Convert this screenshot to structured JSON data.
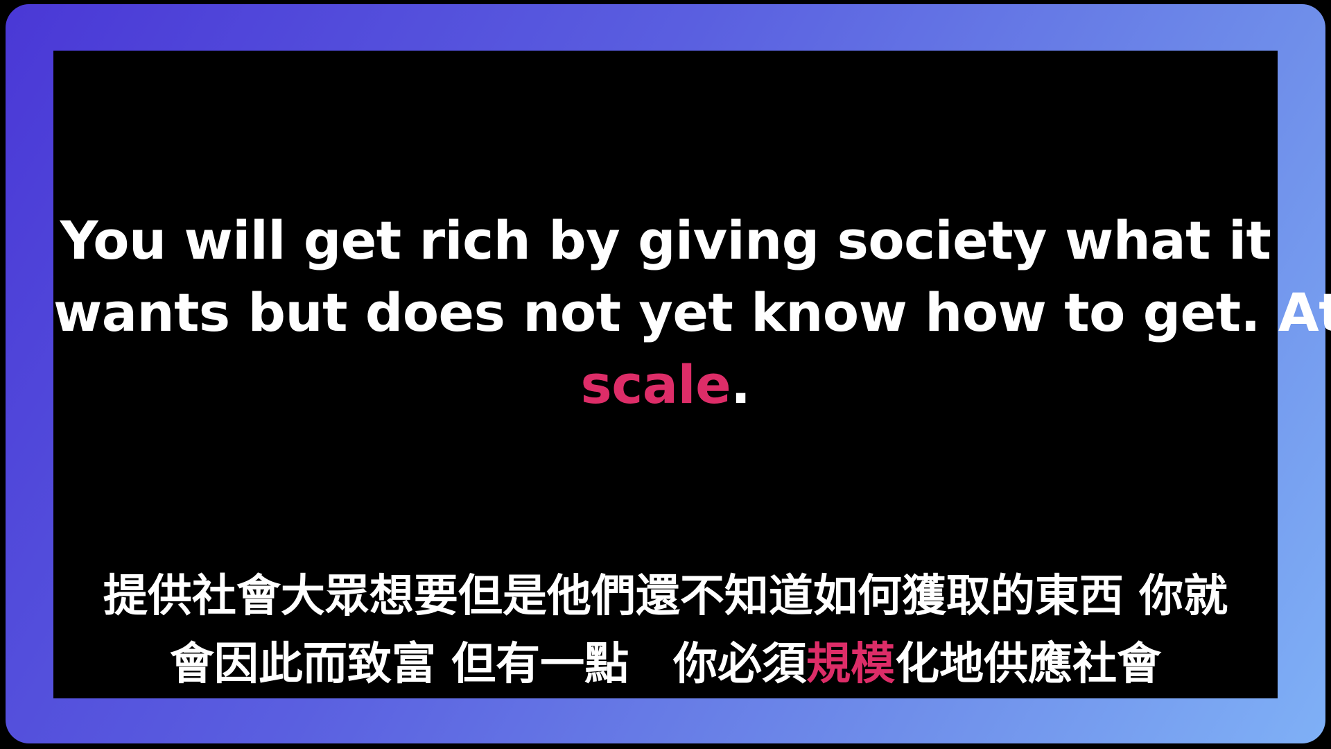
{
  "quote_en": {
    "line1": "You will get rich by giving society what it",
    "line2": "wants but does not yet know how to get. At",
    "line3_highlight": "scale",
    "line3_end": "."
  },
  "quote_zh": {
    "line1": "提供社會大眾想要但是他們還不知道如何獲取的東西 你就",
    "line2_before": "會因此而致富 但有一點　你必須",
    "line2_highlight": "規模",
    "line2_after": "化地供應社會"
  },
  "colors": {
    "accent": "#dd2d68",
    "frame_gradient_start": "#4a38d6",
    "frame_gradient_end": "#7fb0f6",
    "panel_background": "#000000",
    "text": "#ffffff"
  }
}
